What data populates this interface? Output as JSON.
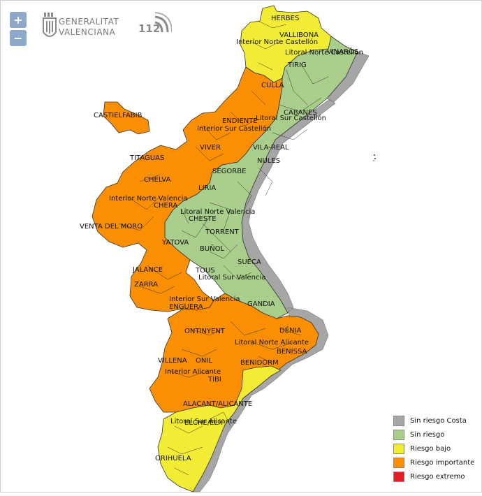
{
  "controls": {
    "zoom_in": "+",
    "zoom_out": "−"
  },
  "logos": {
    "gva_line1": "GENERALITAT",
    "gva_line2": "VALENCIANA",
    "emergency_number": "112"
  },
  "map": {
    "labels": [
      "HERBES",
      "VALLIBONA",
      "Interior Norte Castellón",
      "Litoral Norte Castellón",
      "VINARÒS",
      "TIRIG",
      "CULLA",
      "CASTIELFABIB",
      "CABANES",
      "Litoral Sur Castellón",
      "ENDIENTE",
      "Interior Sur Castellón",
      "VIVER",
      "VILA-REAL",
      "TITAGUAS",
      "NULES",
      "SEGORBE",
      "CHELVA",
      "LIRIA",
      "Interior Norte Valencia",
      "CHERA",
      "Litoral Norte Valencia",
      "CHESTE",
      "VENTA DEL MORO",
      "TORRENT",
      "YATOVA",
      "BUÑOL",
      "SUECA",
      "JALANCE",
      "TOUS",
      "Litoral Sur Valencia",
      "ZARRA",
      "Interior Sur Valencia",
      "ENGUERA",
      "GANDIA",
      "ONTINYENT",
      "DÉNIA",
      "Litoral Norte Alicante",
      "BENISSA",
      "VILLENA",
      "ONIL",
      "BENIDORM",
      "Interior Alicante",
      "TIBI",
      "ALACANT/ALICANTE",
      "Litoral Sur Alicante",
      "ELCHE/ELX",
      "ORIHUELA"
    ]
  },
  "legend": [
    {
      "label": "Sin riesgo Costa",
      "color": "#a6a6a6"
    },
    {
      "label": "Sin riesgo",
      "color": "#a9cd8b"
    },
    {
      "label": "Riesgo bajo",
      "color": "#f2ec35"
    },
    {
      "label": "Riesgo importante",
      "color": "#fb8f03"
    },
    {
      "label": "Riesgo extremo",
      "color": "#e31e24"
    }
  ],
  "colors": {
    "coast": "#a6a6a6",
    "no_risk": "#a9cd8b",
    "low": "#f2ec35",
    "important": "#fb8f03",
    "extreme": "#e31e24"
  }
}
